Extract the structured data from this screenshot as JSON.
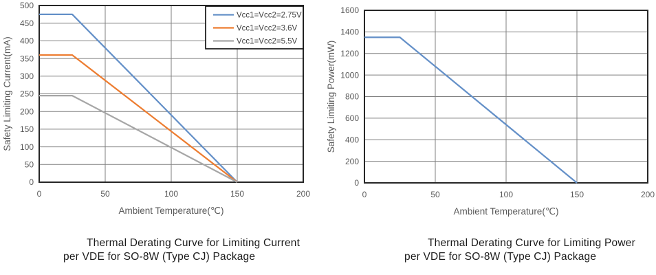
{
  "colors": {
    "series_blue": "#6490c8",
    "series_orange": "#ed7d31",
    "series_gray": "#a6a6a6",
    "gridline": "#7f7f7f",
    "plot_border": "#262626",
    "tick_label": "#595959",
    "axis_title": "#595959",
    "legend_text": "#404040",
    "legend_border": "#1a1a1a",
    "caption_text": "#1a1a1a",
    "background": "#ffffff"
  },
  "chart_data": [
    {
      "type": "line",
      "caption": [
        "Thermal Derating Curve for Limiting Current",
        "per VDE for SO-8W (Type CJ) Package"
      ],
      "xlabel": "Ambient Temperature(℃)",
      "ylabel": "Safety Limiting Current(mA)",
      "xlim": [
        0,
        200
      ],
      "ylim": [
        0,
        500
      ],
      "xticks": [
        0,
        50,
        100,
        150,
        200
      ],
      "yticks": [
        0,
        50,
        100,
        150,
        200,
        250,
        300,
        350,
        400,
        450,
        500
      ],
      "grid": true,
      "legend": {
        "show": true,
        "position": "top-right-inside"
      },
      "series": [
        {
          "name": "Vcc1=Vcc2=2.75V",
          "color": "#6490c8",
          "x": [
            0,
            25,
            150
          ],
          "y": [
            475,
            475,
            0
          ]
        },
        {
          "name": "Vcc1=Vcc2=3.6V",
          "color": "#ed7d31",
          "x": [
            0,
            25,
            150
          ],
          "y": [
            360,
            360,
            0
          ]
        },
        {
          "name": "Vcc1=Vcc2=5.5V",
          "color": "#a6a6a6",
          "x": [
            0,
            25,
            150
          ],
          "y": [
            245,
            245,
            0
          ]
        }
      ]
    },
    {
      "type": "line",
      "caption": [
        "Thermal Derating Curve for Limiting Power",
        "per VDE for SO-8W (Type CJ) Package"
      ],
      "xlabel": "Ambient Temperature(℃)",
      "ylabel": "Safety Limiting Power(mW)",
      "xlim": [
        0,
        200
      ],
      "ylim": [
        0,
        1600
      ],
      "xticks": [
        0,
        50,
        100,
        150,
        200
      ],
      "yticks": [
        0,
        200,
        400,
        600,
        800,
        1000,
        1200,
        1400,
        1600
      ],
      "grid": true,
      "legend": {
        "show": false,
        "position": "none"
      },
      "series": [
        {
          "name": "",
          "color": "#6490c8",
          "x": [
            0,
            25,
            150
          ],
          "y": [
            1350,
            1350,
            0
          ]
        }
      ]
    }
  ]
}
